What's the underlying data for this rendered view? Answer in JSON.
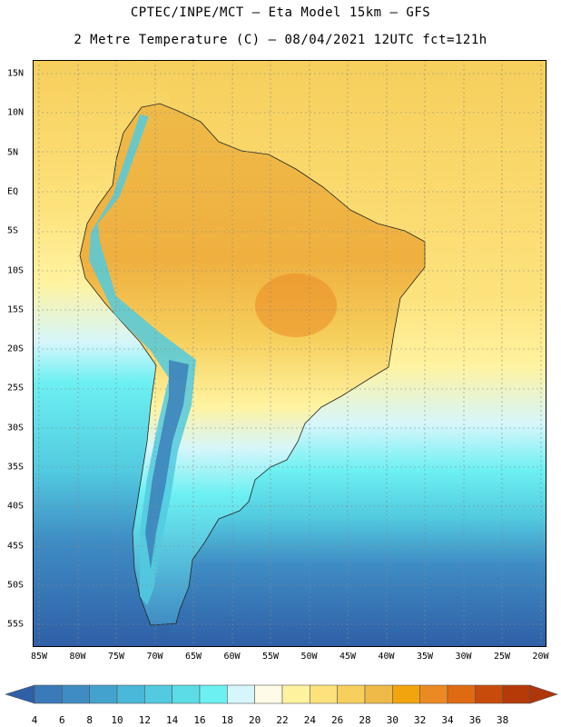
{
  "header": {
    "line1": "CPTEC/INPE/MCT –  Eta Model 15km – GFS",
    "line2": "2 Metre Temperature (C) – 08/04/2021 12UTC fct=121h"
  },
  "map": {
    "latitude_labels": [
      "15N",
      "10N",
      "5N",
      "EQ",
      "5S",
      "10S",
      "15S",
      "20S",
      "25S",
      "30S",
      "35S",
      "40S",
      "45S",
      "50S",
      "55S"
    ],
    "longitude_labels": [
      "85W",
      "80W",
      "75W",
      "70W",
      "65W",
      "60W",
      "55W",
      "50W",
      "45W",
      "40W",
      "35W",
      "30W",
      "25W",
      "20W"
    ]
  },
  "colorbar": {
    "labels": [
      "4",
      "6",
      "8",
      "10",
      "12",
      "14",
      "16",
      "18",
      "20",
      "22",
      "24",
      "26",
      "28",
      "30",
      "32",
      "34",
      "36",
      "38"
    ],
    "colors": [
      "#3a7ab8",
      "#3f8cc4",
      "#44a2cf",
      "#4ab8d8",
      "#52cadf",
      "#5cdce6",
      "#6cf0f2",
      "#d6f6fb",
      "#fffbe6",
      "#fff3a0",
      "#fde27c",
      "#f6cf5c",
      "#efba48",
      "#f2a40f",
      "#eb8a22",
      "#e06a12",
      "#c94b0c",
      "#b53a08"
    ],
    "low_color": "#2f5fa6",
    "high_color": "#b0350a"
  }
}
